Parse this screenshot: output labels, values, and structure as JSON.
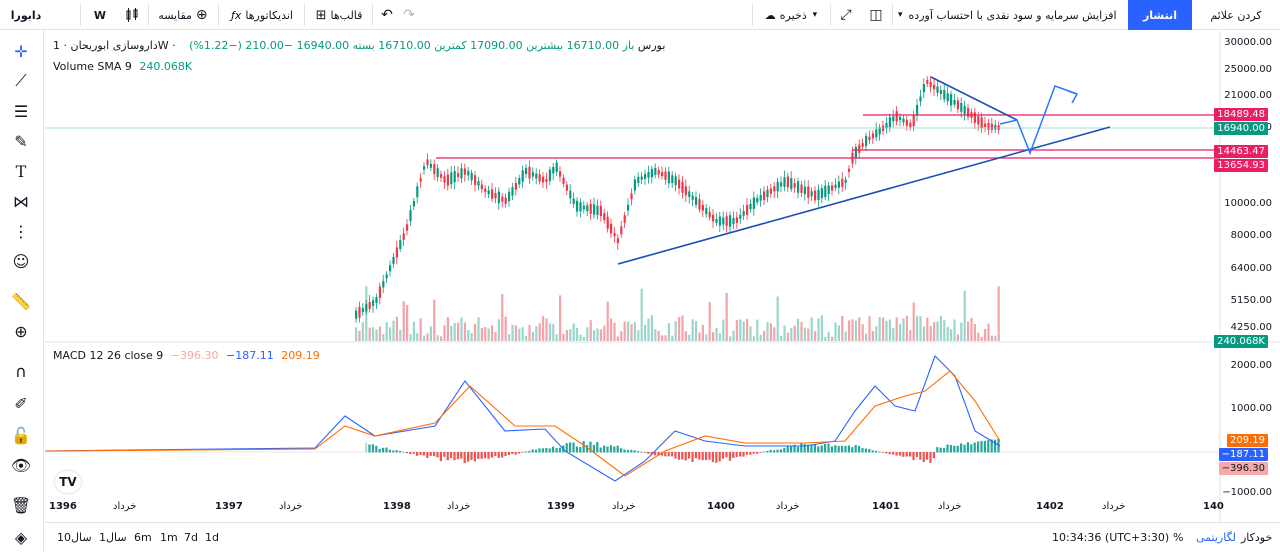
{
  "topbar": {
    "symbol": "دابورا",
    "interval": "W",
    "compare": "مقایسه",
    "indicators": "اندیکاتورها",
    "templates": "قالب‌ها",
    "save": "ذخیره",
    "layout_title": "افزایش سرمایه و سود نقدی با احتساب آورده",
    "publish": "انتشار",
    "alerts": "کردن علائم"
  },
  "legend": {
    "main": "دارو‌سازی ابوریحان · 1W · بورس",
    "ohlc": "باز 16710.00  بیشترین 17090.00  کمترین 16710.00  بسته 16940.00  −210.00 (−1.22%)",
    "volume_label": "Volume SMA 9",
    "volume_value": "240.068K",
    "macd_label": "MACD 12 26 close 9",
    "macd_hist": "−396.30",
    "macd_line": "−187.11",
    "macd_signal": "209.19"
  },
  "price_axis": {
    "ticks": [
      "30000.00",
      "25000.00",
      "21000.00",
      "17000.00",
      "10000.00",
      "8000.00",
      "6400.00",
      "5150.00",
      "4250.00"
    ],
    "labels": [
      {
        "text": "18489.48",
        "color": "#e91e63"
      },
      {
        "text": "16940.00",
        "color": "#089981"
      },
      {
        "text": "14463.47",
        "color": "#e91e63"
      },
      {
        "text": "13654.93",
        "color": "#e91e63"
      },
      {
        "text": "240.068K",
        "color": "#089981"
      }
    ]
  },
  "macd_axis": {
    "ticks": [
      "2000.00",
      "1000.00",
      "−1000.00"
    ],
    "labels": [
      {
        "text": "209.19",
        "color": "#ff6d00"
      },
      {
        "text": "−187.11",
        "color": "#2962ff"
      },
      {
        "text": "−396.30",
        "color": "#f7a9a9",
        "text_color": "#131722"
      }
    ]
  },
  "time_axis": [
    "1396",
    "خرداد",
    "1397",
    "خرداد",
    "1398",
    "خرداد",
    "1399",
    "خرداد",
    "1400",
    "خرداد",
    "1401",
    "خرداد",
    "1402",
    "خرداد",
    "140"
  ],
  "bottombar": {
    "ranges": [
      "1d",
      "7d",
      "1m",
      "6m",
      "1سال",
      "10سال"
    ],
    "clock": "10:34:36 (UTC+3:30)",
    "percent": "%",
    "log": "لگاریتمی",
    "auto": "خودکار"
  },
  "colors": {
    "up": "#089981",
    "down": "#f23645",
    "macd": "#2962ff",
    "signal": "#ff6d00",
    "hline": "#e91e63",
    "trend": "#1e4fb8"
  }
}
